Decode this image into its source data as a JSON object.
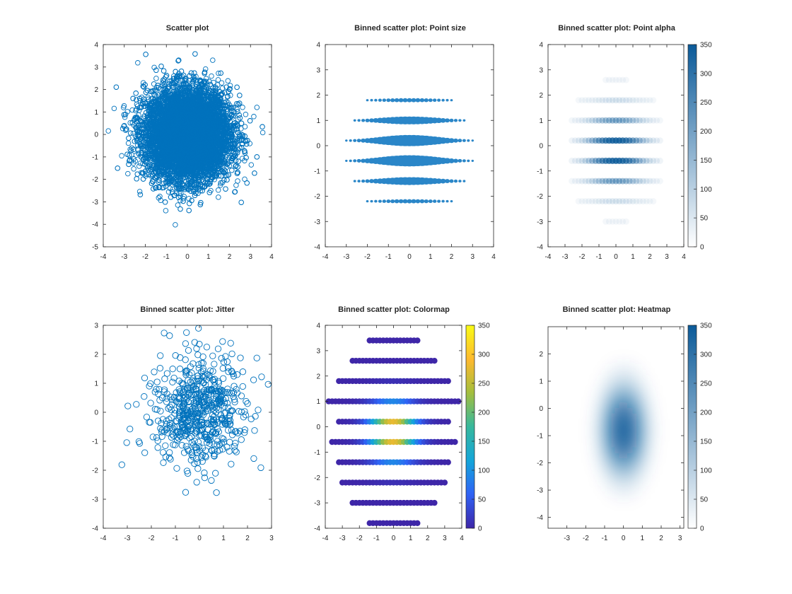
{
  "colors": {
    "primary": "#0072bd",
    "colormap": [
      "#3e26a8",
      "#2f63f5",
      "#14a5da",
      "#37b89d",
      "#a5be3c",
      "#fdb92f",
      "#f9fb15"
    ]
  },
  "chart_data": [
    {
      "id": "scatter",
      "type": "scatter",
      "title": "Scatter plot",
      "marker": "circle-open",
      "xlim": [
        -4,
        4
      ],
      "ylim": [
        -5,
        4
      ],
      "xticks": [
        "-4",
        "-3",
        "-2",
        "-1",
        "0",
        "1",
        "2",
        "3",
        "4"
      ],
      "yticks": [
        "-5",
        "-4",
        "-3",
        "-2",
        "-1",
        "0",
        "1",
        "2",
        "3",
        "4"
      ],
      "n_points": 10000,
      "distribution": {
        "x_mean": 0,
        "x_std": 1,
        "y_mean": 0,
        "y_std": 1
      }
    },
    {
      "id": "point-size",
      "type": "scatter",
      "title": "Binned scatter plot: Point size",
      "encoding": "marker size = bin count",
      "xlim": [
        -4,
        4
      ],
      "ylim": [
        -4,
        4
      ],
      "xticks": [
        "-4",
        "-3",
        "-2",
        "-1",
        "0",
        "1",
        "2",
        "3",
        "4"
      ],
      "yticks": [
        "-4",
        "-3",
        "-2",
        "-1",
        "0",
        "1",
        "2",
        "3",
        "4"
      ],
      "bin_rows_y": [
        -3.0,
        -2.2,
        -1.4,
        -0.6,
        0.2,
        1.0,
        1.8,
        2.6
      ],
      "bin_width_x": 0.2,
      "count_max": 350
    },
    {
      "id": "point-alpha",
      "type": "scatter",
      "title": "Binned scatter plot: Point alpha",
      "encoding": "marker opacity = bin count",
      "xlim": [
        -4,
        4
      ],
      "ylim": [
        -4,
        4
      ],
      "xticks": [
        "-4",
        "-3",
        "-2",
        "-1",
        "0",
        "1",
        "2",
        "3",
        "4"
      ],
      "yticks": [
        "-4",
        "-3",
        "-2",
        "-1",
        "0",
        "1",
        "2",
        "3",
        "4"
      ],
      "bin_rows_y": [
        -3.0,
        -2.2,
        -1.4,
        -0.6,
        0.2,
        1.0,
        1.8,
        2.6
      ],
      "colorbar": {
        "min": 0,
        "max": 350,
        "ticks": [
          "0",
          "50",
          "100",
          "150",
          "200",
          "250",
          "300",
          "350"
        ]
      }
    },
    {
      "id": "jitter",
      "type": "scatter",
      "title": "Binned scatter plot: Jitter",
      "marker": "circle-open",
      "xlim": [
        -4,
        3
      ],
      "ylim": [
        -4,
        3
      ],
      "xticks": [
        "-4",
        "-3",
        "-2",
        "-1",
        "0",
        "1",
        "2",
        "3"
      ],
      "yticks": [
        "-4",
        "-3",
        "-2",
        "-1",
        "0",
        "1",
        "2",
        "3"
      ],
      "n_points": 600,
      "distribution": {
        "x_mean": 0,
        "x_std": 1,
        "y_mean": 0,
        "y_std": 1
      }
    },
    {
      "id": "colormap",
      "type": "scatter",
      "title": "Binned scatter plot: Colormap",
      "encoding": "marker color = bin count",
      "xlim": [
        -4,
        4
      ],
      "ylim": [
        -4,
        4
      ],
      "xticks": [
        "-4",
        "-3",
        "-2",
        "-1",
        "0",
        "1",
        "2",
        "3",
        "4"
      ],
      "yticks": [
        "-4",
        "-3",
        "-2",
        "-1",
        "0",
        "1",
        "2",
        "3",
        "4"
      ],
      "bin_rows_y": [
        -3.8,
        -3.0,
        -2.2,
        -1.4,
        -0.6,
        0.2,
        1.0,
        1.8,
        2.6,
        3.4
      ],
      "bin_width_x": 0.2,
      "colorbar": {
        "min": 0,
        "max": 350,
        "ticks": [
          "0",
          "50",
          "100",
          "150",
          "200",
          "250",
          "300",
          "350"
        ]
      }
    },
    {
      "id": "heatmap",
      "type": "heatmap",
      "title": "Binned scatter plot: Heatmap",
      "xlim": [
        -4,
        3.2
      ],
      "ylim": [
        -4.4,
        3
      ],
      "xticks": [
        "-3",
        "-2",
        "-1",
        "0",
        "1",
        "2",
        "3"
      ],
      "yticks": [
        "-4",
        "-3",
        "-2",
        "-1",
        "0",
        "1",
        "2"
      ],
      "density_center": [
        0,
        -0.8
      ],
      "density_spread": [
        0.65,
        0.95
      ],
      "colorbar": {
        "min": 0,
        "max": 350,
        "ticks": [
          "0",
          "50",
          "100",
          "150",
          "200",
          "250",
          "300",
          "350"
        ]
      }
    }
  ]
}
